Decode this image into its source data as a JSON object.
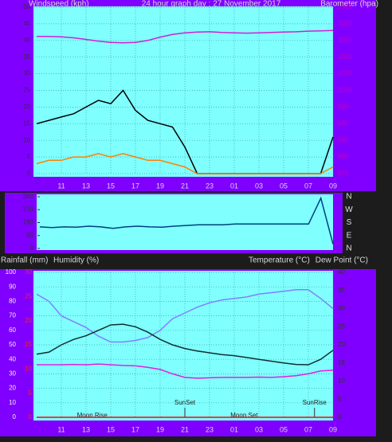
{
  "chart_data": [
    {
      "type": "line",
      "title": "24 hour graph day : 27 November 2017",
      "y_label": "Windspeed (kph)",
      "y2_label": "Barometer (hpa)",
      "x": [
        9,
        10,
        11,
        12,
        13,
        14,
        15,
        16,
        17,
        18,
        19,
        20,
        21,
        22,
        23,
        24,
        25,
        26,
        27,
        28,
        29,
        30,
        31,
        32,
        33
      ],
      "xlim": [
        9,
        33
      ],
      "xticks": [
        11,
        13,
        15,
        17,
        19,
        21,
        23,
        {
          "value": 25,
          "label": "01"
        },
        {
          "value": 27,
          "label": "03"
        },
        {
          "value": 29,
          "label": "05"
        },
        {
          "value": 31,
          "label": "07"
        },
        {
          "value": 33,
          "label": "09"
        }
      ],
      "ylim": [
        0,
        50
      ],
      "yticks": [
        0,
        5,
        10,
        15,
        20,
        25,
        30,
        35,
        40,
        45,
        50
      ],
      "y2lim": [
        975,
        1025
      ],
      "y2ticks": [
        975,
        980,
        985,
        990,
        995,
        1000,
        1005,
        1010,
        1015,
        1020,
        1025
      ],
      "grid": true,
      "series": [
        {
          "color": "#000000",
          "values": [
            15,
            16,
            17,
            18,
            20,
            22,
            21,
            25,
            19,
            16,
            15,
            14,
            8,
            0,
            0,
            0,
            0,
            0,
            0,
            0,
            0,
            0,
            0,
            0,
            11
          ]
        },
        {
          "color": "#ff8000",
          "values": [
            3,
            4,
            4,
            5,
            5,
            6,
            5,
            6,
            5,
            4,
            4,
            3,
            2,
            0,
            0,
            0,
            0,
            0,
            0,
            0,
            0,
            0,
            0,
            0,
            2
          ]
        },
        {
          "color": "#d020d0",
          "axis": "y2",
          "values": [
            1016.2,
            1016.2,
            1016.1,
            1015.8,
            1015.3,
            1014.8,
            1014.4,
            1014.3,
            1014.4,
            1015.0,
            1016.0,
            1016.8,
            1017.3,
            1017.5,
            1017.6,
            1017.4,
            1017.3,
            1017.2,
            1017.3,
            1017.4,
            1017.5,
            1017.6,
            1017.8,
            1017.9,
            1018.0
          ]
        }
      ]
    },
    {
      "type": "line",
      "x": [
        9,
        10,
        11,
        12,
        13,
        14,
        15,
        16,
        17,
        18,
        19,
        20,
        21,
        22,
        23,
        24,
        25,
        26,
        27,
        28,
        29,
        30,
        31,
        32,
        33
      ],
      "xlim": [
        9,
        33
      ],
      "ylim": [
        0,
        360
      ],
      "yticks": [
        0,
        90,
        180,
        270,
        360
      ],
      "compass": [
        "N",
        "W",
        "S",
        "E",
        "N"
      ],
      "series": [
        {
          "color": "#004080",
          "values": [
            150,
            145,
            150,
            148,
            155,
            150,
            140,
            150,
            155,
            150,
            148,
            155,
            160,
            165,
            165,
            165,
            170,
            170,
            170,
            170,
            170,
            170,
            170,
            350,
            30
          ]
        }
      ]
    },
    {
      "type": "line",
      "rain_label": "Rainfall (mm)",
      "y_label": "Humidity (%)",
      "y2_label": "Temperature (°C)",
      "dew_label": "Dew Point (°C)",
      "x": [
        9,
        10,
        11,
        12,
        13,
        14,
        15,
        16,
        17,
        18,
        19,
        20,
        21,
        22,
        23,
        24,
        25,
        26,
        27,
        28,
        29,
        30,
        31,
        32,
        33
      ],
      "xlim": [
        9,
        33
      ],
      "xticks": [
        11,
        13,
        15,
        17,
        19,
        21,
        23,
        {
          "value": 25,
          "label": "01"
        },
        {
          "value": 27,
          "label": "03"
        },
        {
          "value": 29,
          "label": "05"
        },
        {
          "value": 31,
          "label": "07"
        },
        {
          "value": 33,
          "label": "09"
        }
      ],
      "ylim": [
        0,
        100
      ],
      "yticks": [
        0,
        10,
        20,
        30,
        40,
        50,
        60,
        70,
        80,
        90,
        100
      ],
      "y2lim": [
        0,
        40
      ],
      "y2ticks": [
        0,
        5,
        10,
        15,
        20,
        25,
        30,
        35,
        40
      ],
      "y3lim": [
        0,
        30
      ],
      "y3ticks": [
        0,
        5,
        10,
        15,
        20,
        25,
        30
      ],
      "grid": true,
      "annotations": [
        {
          "text": "Moon Rise",
          "x": 13.5
        },
        {
          "text": "SunSet",
          "x": 21,
          "line": true
        },
        {
          "text": "Moon Set",
          "x": 25.8
        },
        {
          "text": "SunRise",
          "x": 31.5,
          "line": true
        }
      ],
      "series": [
        {
          "color": "#8080ff",
          "values": [
            85,
            80,
            70,
            66,
            62,
            56,
            52,
            52,
            53,
            55,
            60,
            68,
            72,
            76,
            79,
            81,
            82,
            83,
            85,
            86,
            87,
            88,
            88,
            82,
            75
          ]
        },
        {
          "color": "#103030",
          "axis": "y2",
          "values": [
            17.4,
            18.0,
            20.0,
            21.5,
            22.5,
            24.0,
            25.5,
            25.7,
            25.0,
            23.5,
            21.5,
            20.0,
            19.0,
            18.3,
            17.8,
            17.3,
            17.0,
            16.5,
            16.0,
            15.5,
            15.0,
            14.6,
            14.5,
            16.0,
            18.5
          ]
        },
        {
          "color": "#e020e0",
          "axis": "y2",
          "values": [
            14.5,
            14.5,
            14.5,
            14.6,
            14.5,
            14.7,
            14.5,
            14.3,
            14.2,
            13.8,
            13.2,
            12.0,
            11.0,
            10.8,
            10.9,
            11.0,
            11.0,
            11.0,
            11.1,
            11.0,
            11.2,
            11.5,
            12.0,
            12.8,
            13.0
          ]
        },
        {
          "color": "#ff0000",
          "axis": "y3",
          "values": [
            0,
            0,
            0,
            0,
            0,
            0,
            0,
            0,
            0,
            0,
            0,
            0,
            0,
            0,
            0,
            0,
            0,
            0,
            0,
            0,
            0,
            0,
            0,
            0,
            0
          ]
        }
      ]
    }
  ]
}
